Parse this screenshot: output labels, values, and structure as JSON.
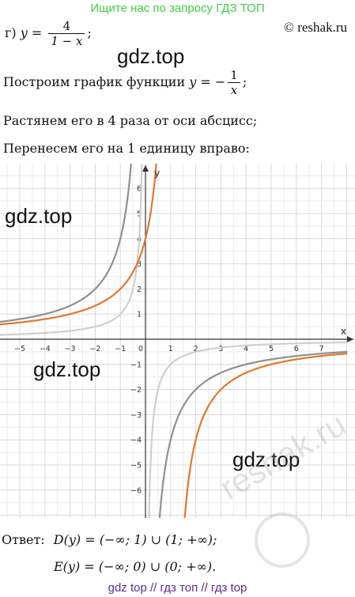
{
  "banner": "Ищите нас по запросу ГДЗ ТОП",
  "credit": "© reshak.ru",
  "watermarks": {
    "w1": "gdz.top",
    "w2": "gdz.top",
    "w3": "gdz.top",
    "w4": "gdz.top",
    "diagonal": "reshak.ru"
  },
  "problem": {
    "label": "г)",
    "y": "y",
    "eq": "=",
    "num": "4",
    "den": "1 − x",
    "tail": ";"
  },
  "steps": {
    "s1_text": "Построим график функции",
    "s1_y": "y",
    "s1_eq": "= −",
    "s1_num": "1",
    "s1_den": "x",
    "s1_tail": ";",
    "s2": "Растянем его в 4 раза от оси абсцисс;",
    "s3": "Перенесем его на 1 единицу вправо:"
  },
  "chart_data": {
    "type": "line",
    "xlabel": "x",
    "ylabel": "y",
    "xlim": [
      -5.8,
      8.0
    ],
    "ylim": [
      -7.0,
      7.0
    ],
    "x_ticks": [
      -5,
      -4,
      -3,
      -2,
      -1,
      0,
      1,
      2,
      3,
      4,
      5,
      6,
      7
    ],
    "x_tick_labels": [
      "−5",
      "−4",
      "−3",
      "−2",
      "−1",
      "0",
      "1",
      "2",
      "3",
      "4",
      "5",
      "6",
      "7"
    ],
    "y_ticks": [
      -6,
      -5,
      -4,
      -3,
      -2,
      -1,
      1,
      2,
      3,
      4,
      5,
      6
    ],
    "y_tick_labels": [
      "−6",
      "−5",
      "−4",
      "−3",
      "−2",
      "−1",
      "1",
      "2",
      "3",
      "4",
      "5",
      "6"
    ],
    "grid": true,
    "series": [
      {
        "k": 1,
        "shift": 0,
        "color": "#cfcfcf"
      },
      {
        "k": 4,
        "shift": 0,
        "color": "#909090"
      },
      {
        "k": 4,
        "shift": 1,
        "color": "#e07830"
      }
    ]
  },
  "answer": {
    "label": "Ответ:",
    "line1": "D(y) = (−∞; 1) ∪ (1; +∞);",
    "line2": "E(y) = (−∞; 0) ∪ (0; +∞)."
  },
  "footer": "gdz top  //  гдз топ  //  гдз top"
}
